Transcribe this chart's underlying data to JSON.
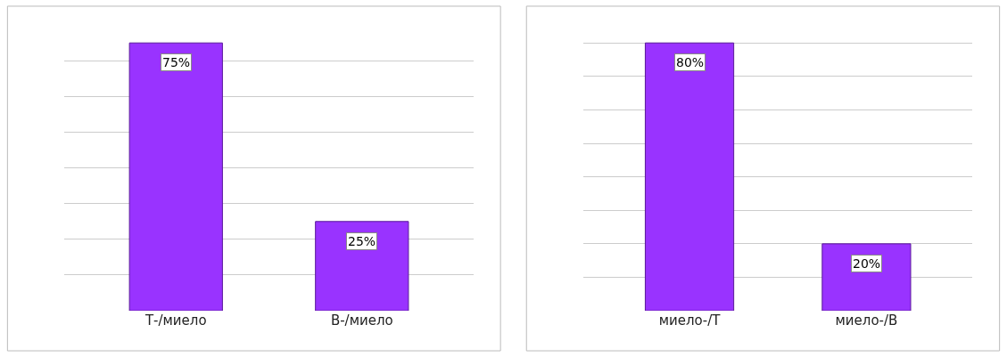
{
  "chart_data": [
    {
      "type": "bar",
      "categories": [
        "Т-/миело",
        "В-/миело"
      ],
      "values": [
        75,
        25
      ],
      "value_labels": [
        "75%",
        "25%"
      ],
      "color": "#9933ff",
      "grid": "y",
      "tick_labels": "x"
    },
    {
      "type": "bar",
      "categories": [
        "миело-/Т",
        "миело-/В"
      ],
      "values": [
        80,
        20
      ],
      "value_labels": [
        "80%",
        "20%"
      ],
      "color": "#9933ff",
      "grid": "y",
      "tick_labels": "x"
    }
  ]
}
